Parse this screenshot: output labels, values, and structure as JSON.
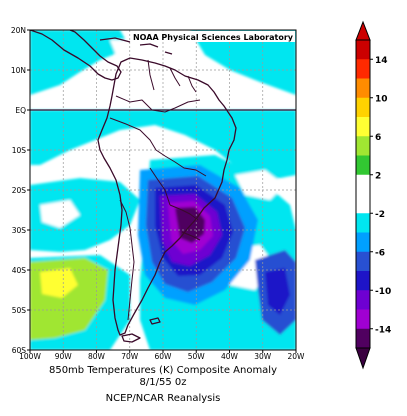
{
  "credit": "NOAA Physical Sciences Laboratory",
  "caption": {
    "line1": "850mb Temperatures (K)    Composite Anomaly",
    "line2": "8/1/55 0z",
    "line3": "NCEP/NCAR Reanalysis"
  },
  "map": {
    "lat_labels": [
      "20N",
      "10N",
      "EQ",
      "10S",
      "20S",
      "30S",
      "40S",
      "50S",
      "60S"
    ],
    "lon_labels": [
      "100W",
      "90W",
      "80W",
      "70W",
      "60W",
      "50W",
      "40W",
      "30W",
      "20W"
    ],
    "lon_range": [
      -100,
      -20
    ],
    "lat_range": [
      -60,
      20
    ],
    "grid": true
  },
  "colorbar": {
    "labels": [
      "14",
      "10",
      "6",
      "2",
      "-2",
      "-6",
      "-10",
      "-14"
    ],
    "colors": [
      "#cc0000",
      "#ff2a00",
      "#ff8c00",
      "#ffd200",
      "#ffff33",
      "#a0e632",
      "#32c832",
      "#ffffff",
      "#ffffff",
      "#00e6f0",
      "#00a0ff",
      "#2850d2",
      "#1e14c8",
      "#6e00d2",
      "#a000d2",
      "#500060"
    ]
  }
}
